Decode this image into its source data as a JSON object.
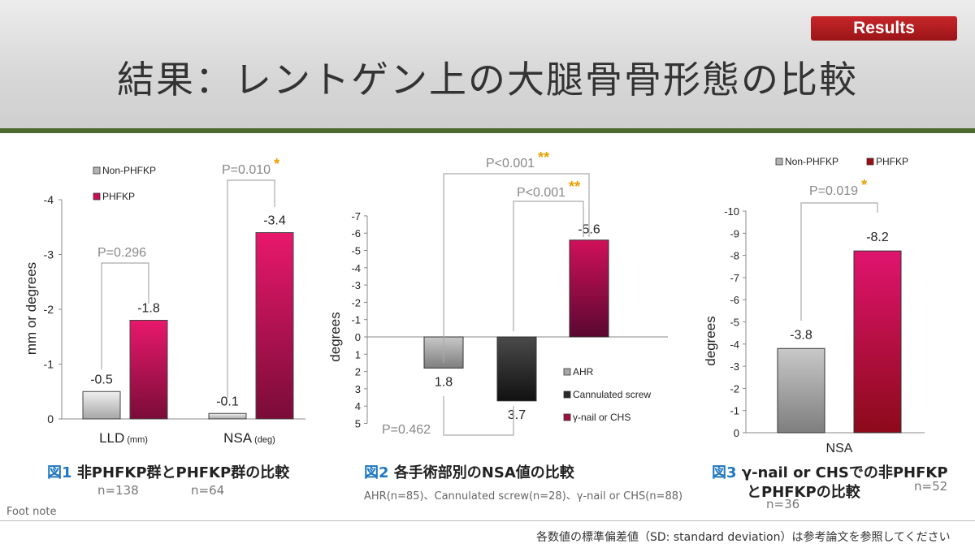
{
  "header": {
    "badge": "Results",
    "title": "結果：レントゲン上の大腿骨骨形態の比較"
  },
  "colors": {
    "non_phfkp": "#b4b4b4",
    "phfkp": "#c8105a",
    "ahr": "#a8a8a8",
    "cannulated": "#2a2a2a",
    "gamma": "#a01040",
    "phfkp_dark": "#a00c16",
    "bracket": "#aaaaaa",
    "star": "#e8a000",
    "figure_label": "#1f77c0"
  },
  "figure1": {
    "caption_label": "図1",
    "caption_text": "非PHFKP群とPHFKP群の比較",
    "n_left": "n=138",
    "n_right": "n=64"
  },
  "figure2": {
    "caption_label": "図2",
    "caption_text": "各手術部別のNSA値の比較",
    "note": "AHR(n=85)、Cannulated screw(n=28)、γ-nail or CHS(n=88)"
  },
  "figure3": {
    "caption_label": "図3",
    "caption_text_1": "γ-nail or CHSでの非PHFKP",
    "caption_text_2": "とPHFKPの比較",
    "n_left": "n=36",
    "n_right": "n=52"
  },
  "footer": {
    "foot_note": "Foot note",
    "text": "各数値の標準偏差値（SD: standard deviation）は参考論文を参照してください"
  },
  "chart_data": [
    {
      "type": "bar",
      "ylabel": "mm or degrees",
      "ylim": [
        0,
        -4
      ],
      "yaxis_inverted": true,
      "yticks": [
        "0",
        "-1",
        "-2",
        "-3",
        "-4"
      ],
      "categories": [
        "LLD",
        "NSA"
      ],
      "category_units": [
        "(mm)",
        "(deg)"
      ],
      "legend": [
        "Non-PHFKP",
        "PHFKP"
      ],
      "legend_position": "top-left",
      "series": [
        {
          "name": "Non-PHFKP",
          "values": [
            -0.5,
            -0.1
          ],
          "labels": [
            "-0.5",
            "-0.1"
          ]
        },
        {
          "name": "PHFKP",
          "values": [
            -1.8,
            -3.4
          ],
          "labels": [
            "-1.8",
            "-3.4"
          ]
        }
      ],
      "annotations": [
        {
          "text": "P=0.296",
          "stars": ""
        },
        {
          "text": "P=0.010",
          "stars": "*"
        }
      ]
    },
    {
      "type": "bar",
      "ylabel": "degrees",
      "ylim": [
        5,
        -7
      ],
      "yaxis_inverted": true,
      "yticks": [
        "-7",
        "-6",
        "-5",
        "-4",
        "-3",
        "-2",
        "-1",
        "0",
        "1",
        "2",
        "3",
        "4",
        "5"
      ],
      "categories": [
        "AHR",
        "Cannulated screw",
        "γ-nail or CHS"
      ],
      "legend": [
        "AHR",
        "Cannulated screw",
        "γ-nail or CHS"
      ],
      "legend_position": "bottom-right",
      "values": [
        1.8,
        3.7,
        -5.6
      ],
      "labels": [
        "1.8",
        "3.7",
        "-5.6"
      ],
      "annotations": [
        {
          "text": "P<0.001",
          "stars": "**"
        },
        {
          "text": "P<0.001",
          "stars": "**"
        },
        {
          "text": "P=0.462",
          "stars": ""
        }
      ]
    },
    {
      "type": "bar",
      "ylabel": "degrees",
      "ylim": [
        0,
        -10
      ],
      "yaxis_inverted": true,
      "yticks": [
        "0",
        "-1",
        "-2",
        "-3",
        "-4",
        "-5",
        "-6",
        "-7",
        "-8",
        "-9",
        "-10"
      ],
      "categories": [
        "NSA"
      ],
      "legend": [
        "Non-PHFKP",
        "PHFKP"
      ],
      "legend_position": "top",
      "series": [
        {
          "name": "Non-PHFKP",
          "values": [
            -3.8
          ],
          "labels": [
            "-3.8"
          ]
        },
        {
          "name": "PHFKP",
          "values": [
            -8.2
          ],
          "labels": [
            "-8.2"
          ]
        }
      ],
      "annotations": [
        {
          "text": "P=0.019",
          "stars": "*"
        }
      ]
    }
  ]
}
